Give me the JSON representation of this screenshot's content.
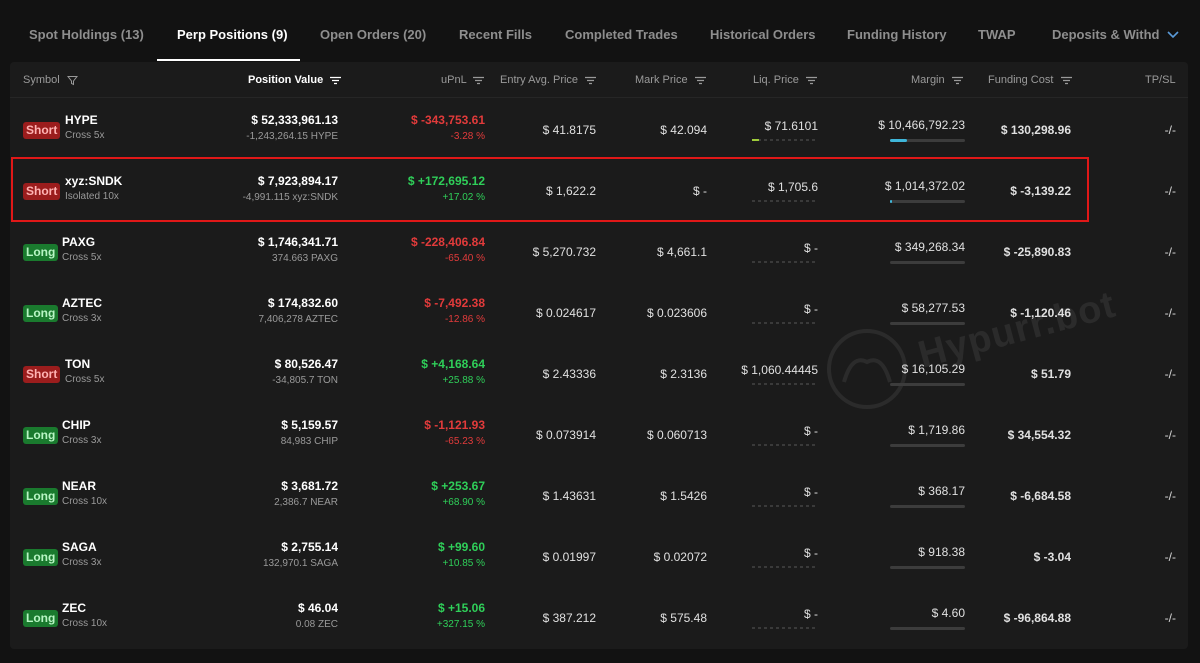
{
  "tabs": [
    {
      "label": "Spot Holdings (13)",
      "active": false
    },
    {
      "label": "Perp Positions (9)",
      "active": true
    },
    {
      "label": "Open Orders (20)",
      "active": false
    },
    {
      "label": "Recent Fills",
      "active": false
    },
    {
      "label": "Completed Trades",
      "active": false
    },
    {
      "label": "Historical Orders",
      "active": false
    },
    {
      "label": "Funding History",
      "active": false
    },
    {
      "label": "TWAP",
      "active": false
    },
    {
      "label": "Deposits & Withd",
      "active": false
    }
  ],
  "columns": {
    "symbol": "Symbol",
    "position_value": "Position Value",
    "upnl": "uPnL",
    "entry": "Entry Avg. Price",
    "mark": "Mark Price",
    "liq": "Liq. Price",
    "margin": "Margin",
    "funding": "Funding Cost",
    "tpsl": "TP/SL"
  },
  "rows": [
    {
      "side": "Short",
      "symbol": "HYPE",
      "leverage": "Cross 5x",
      "position_value": "$ 52,333,961.13",
      "size": "-1,243,264.15 HYPE",
      "upnl": "$ -343,753.61",
      "upnl_pct": "-3.28 %",
      "upnl_sign": "neg",
      "entry": "$ 41.8175",
      "mark": "$ 42.094",
      "liq": "$ 71.6101",
      "liq_level": 0.1,
      "margin": "$ 10,466,792.23",
      "margin_level": 0.22,
      "funding": "$ 130,298.96",
      "funding_sign": "pos",
      "tpsl": "-/-"
    },
    {
      "side": "Short",
      "symbol": "xyz:SNDK",
      "leverage": "Isolated 10x",
      "position_value": "$ 7,923,894.17",
      "size": "-4,991.115 xyz:SNDK",
      "upnl": "$ +172,695.12",
      "upnl_pct": "+17.02 %",
      "upnl_sign": "pos",
      "entry": "$ 1,622.2",
      "mark": "$ -",
      "liq": "$ 1,705.6",
      "liq_level": 0,
      "margin": "$ 1,014,372.02",
      "margin_level": 0.03,
      "funding": "$ -3,139.22",
      "funding_sign": "neg",
      "tpsl": "-/-"
    },
    {
      "side": "Long",
      "symbol": "PAXG",
      "leverage": "Cross 5x",
      "position_value": "$ 1,746,341.71",
      "size": "374.663 PAXG",
      "upnl": "$ -228,406.84",
      "upnl_pct": "-65.40 %",
      "upnl_sign": "neg",
      "entry": "$ 5,270.732",
      "mark": "$ 4,661.1",
      "liq": "$ -",
      "liq_level": 0,
      "margin": "$ 349,268.34",
      "margin_level": 0,
      "funding": "$ -25,890.83",
      "funding_sign": "neg",
      "tpsl": "-/-"
    },
    {
      "side": "Long",
      "symbol": "AZTEC",
      "leverage": "Cross 3x",
      "position_value": "$ 174,832.60",
      "size": "7,406,278 AZTEC",
      "upnl": "$ -7,492.38",
      "upnl_pct": "-12.86 %",
      "upnl_sign": "neg",
      "entry": "$ 0.024617",
      "mark": "$ 0.023606",
      "liq": "$ -",
      "liq_level": 0,
      "margin": "$ 58,277.53",
      "margin_level": 0,
      "funding": "$ -1,120.46",
      "funding_sign": "neg",
      "tpsl": "-/-"
    },
    {
      "side": "Short",
      "symbol": "TON",
      "leverage": "Cross 5x",
      "position_value": "$ 80,526.47",
      "size": "-34,805.7 TON",
      "upnl": "$ +4,168.64",
      "upnl_pct": "+25.88 %",
      "upnl_sign": "pos",
      "entry": "$ 2.43336",
      "mark": "$ 2.3136",
      "liq": "$ 1,060.44445",
      "liq_level": 0,
      "margin": "$ 16,105.29",
      "margin_level": 0,
      "funding": "$ 51.79",
      "funding_sign": "pos",
      "tpsl": "-/-"
    },
    {
      "side": "Long",
      "symbol": "CHIP",
      "leverage": "Cross 3x",
      "position_value": "$ 5,159.57",
      "size": "84,983 CHIP",
      "upnl": "$ -1,121.93",
      "upnl_pct": "-65.23 %",
      "upnl_sign": "neg",
      "entry": "$ 0.073914",
      "mark": "$ 0.060713",
      "liq": "$ -",
      "liq_level": 0,
      "margin": "$ 1,719.86",
      "margin_level": 0,
      "funding": "$ 34,554.32",
      "funding_sign": "pos",
      "tpsl": "-/-"
    },
    {
      "side": "Long",
      "symbol": "NEAR",
      "leverage": "Cross 10x",
      "position_value": "$ 3,681.72",
      "size": "2,386.7 NEAR",
      "upnl": "$ +253.67",
      "upnl_pct": "+68.90 %",
      "upnl_sign": "pos",
      "entry": "$ 1.43631",
      "mark": "$ 1.5426",
      "liq": "$ -",
      "liq_level": 0,
      "margin": "$ 368.17",
      "margin_level": 0,
      "funding": "$ -6,684.58",
      "funding_sign": "neg",
      "tpsl": "-/-"
    },
    {
      "side": "Long",
      "symbol": "SAGA",
      "leverage": "Cross 3x",
      "position_value": "$ 2,755.14",
      "size": "132,970.1 SAGA",
      "upnl": "$ +99.60",
      "upnl_pct": "+10.85 %",
      "upnl_sign": "pos",
      "entry": "$ 0.01997",
      "mark": "$ 0.02072",
      "liq": "$ -",
      "liq_level": 0,
      "margin": "$ 918.38",
      "margin_level": 0,
      "funding": "$ -3.04",
      "funding_sign": "neg",
      "tpsl": "-/-"
    },
    {
      "side": "Long",
      "symbol": "ZEC",
      "leverage": "Cross 10x",
      "position_value": "$ 46.04",
      "size": "0.08 ZEC",
      "upnl": "$ +15.06",
      "upnl_pct": "+327.15 %",
      "upnl_sign": "pos",
      "entry": "$ 387.212",
      "mark": "$ 575.48",
      "liq": "$ -",
      "liq_level": 0,
      "margin": "$ 4.60",
      "margin_level": 0,
      "funding": "$ -96,864.88",
      "funding_sign": "neg",
      "tpsl": "-/-"
    }
  ],
  "watermark": "Hypurr.bot",
  "colors": {
    "negative": "#e23b3b",
    "positive": "#2fcf59",
    "short_badge": "#9b1d1d",
    "long_badge": "#1a7a2e",
    "highlight": "#e01818",
    "margin_fill": "#3fb6d9"
  }
}
